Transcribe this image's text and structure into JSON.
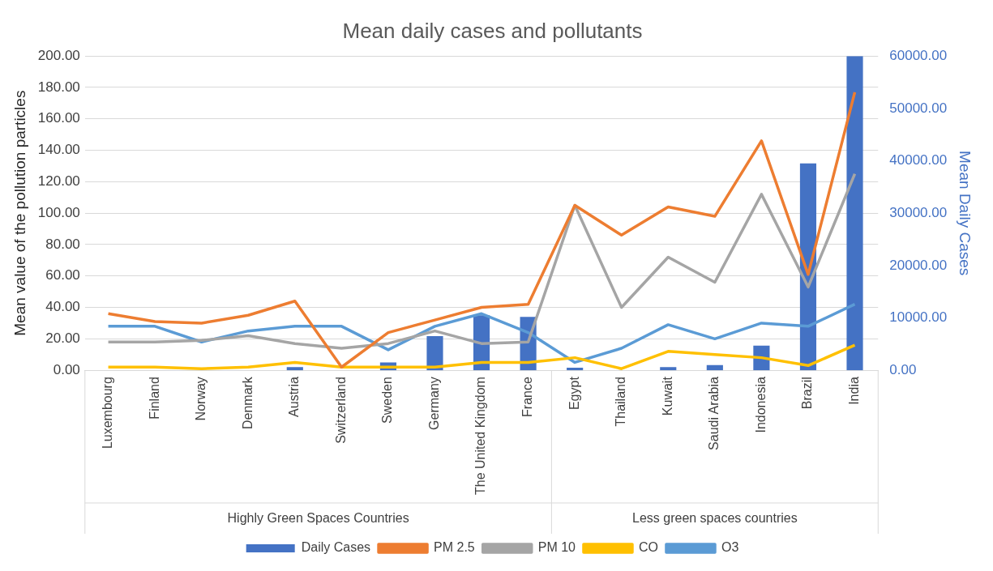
{
  "chart_data": {
    "type": "bar",
    "title": "Mean daily cases and pollutants",
    "ylabel": "Mean value of the pollution particles",
    "y2label": "Mean Daily Cases",
    "categories": [
      "Luxembourg",
      "Finland",
      "Norway",
      "Denmark",
      "Austria",
      "Switzerland",
      "Sweden",
      "Germany",
      "The United Kingdom",
      "France",
      "Egypt",
      "Thailand",
      "Kuwait",
      "Saudi Arabia",
      "Indonesia",
      "Brazil",
      "India"
    ],
    "annotations": [
      "Highly Green Spaces Countries",
      "Less green spaces countries"
    ],
    "series": [
      {
        "name": "Daily Cases",
        "axis": "y2",
        "color": "#4472c4",
        "values": [
          null,
          null,
          null,
          null,
          600,
          null,
          1500,
          6500,
          10500,
          10200,
          500,
          null,
          600,
          1000,
          4700,
          39500,
          60000
        ]
      },
      {
        "name": "PM 2.5",
        "type": "line",
        "color": "#ed7d31",
        "values": [
          36,
          31,
          30,
          35,
          44,
          2,
          24,
          32,
          40,
          42,
          105,
          86,
          104,
          98,
          146,
          61,
          177
        ]
      },
      {
        "name": "PM 10",
        "type": "line",
        "color": "#a5a5a5",
        "values": [
          18,
          18,
          19,
          22,
          17,
          14,
          17,
          25,
          17,
          18,
          105,
          40,
          72,
          56,
          112,
          53,
          125
        ]
      },
      {
        "name": "CO",
        "type": "line",
        "color": "#ffc000",
        "values": [
          2,
          2,
          1,
          2,
          5,
          2,
          2,
          2,
          5,
          5,
          8,
          1,
          12,
          10,
          8,
          3,
          16
        ]
      },
      {
        "name": "O3",
        "type": "line",
        "color": "#5b9bd5",
        "values": [
          28,
          28,
          18,
          25,
          28,
          28,
          13,
          28,
          36,
          24,
          5,
          14,
          29,
          20,
          30,
          28,
          42
        ]
      }
    ],
    "ylim": [
      0,
      200
    ],
    "yticks": [
      {
        "value": 0,
        "label": "0.00"
      },
      {
        "value": 20,
        "label": "20.00"
      },
      {
        "value": 40,
        "label": "40.00"
      },
      {
        "value": 60,
        "label": "60.00"
      },
      {
        "value": 80,
        "label": "80.00"
      },
      {
        "value": 100,
        "label": "100.00"
      },
      {
        "value": 120,
        "label": "120.00"
      },
      {
        "value": 140,
        "label": "140.00"
      },
      {
        "value": 160,
        "label": "160.00"
      },
      {
        "value": 180,
        "label": "180.00"
      },
      {
        "value": 200,
        "label": "200.00"
      }
    ],
    "y2lim": [
      0,
      60000
    ],
    "y2ticks": [
      {
        "value": 0,
        "label": "0.00"
      },
      {
        "value": 10000,
        "label": "10000.00"
      },
      {
        "value": 20000,
        "label": "20000.00"
      },
      {
        "value": 30000,
        "label": "30000.00"
      },
      {
        "value": 40000,
        "label": "40000.00"
      },
      {
        "value": 50000,
        "label": "50000.00"
      },
      {
        "value": 60000,
        "label": "60000.00"
      }
    ],
    "grid": "y",
    "legend": "bottom",
    "marker": "none",
    "line_style": "solid"
  }
}
